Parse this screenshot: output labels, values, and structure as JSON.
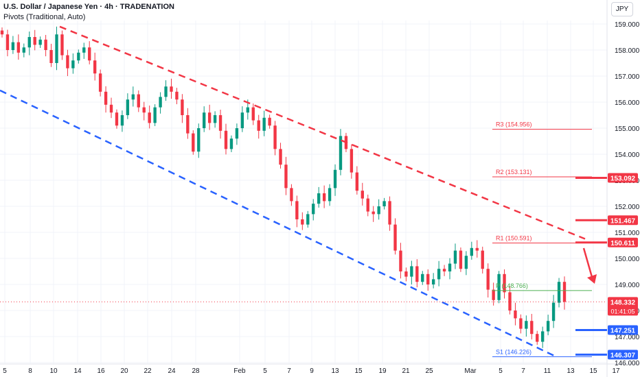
{
  "header": {
    "title": "U.S. Dollar / Japanese Yen · 4h · TRADENATION",
    "indicator": "Pivots (Traditional, Auto)",
    "currency": "JPY"
  },
  "chart_data": {
    "type": "candlestick",
    "ylim": [
      146.0,
      159.2
    ],
    "y_ticks": [
      "159.000",
      "158.000",
      "157.000",
      "156.000",
      "155.000",
      "154.000",
      "153.000",
      "152.000",
      "151.000",
      "150.000",
      "149.000",
      "148.000",
      "147.000",
      "146.000"
    ],
    "x_ticks": [
      "5",
      "8",
      "10",
      "14",
      "16",
      "20",
      "22",
      "24",
      "28",
      "Feb",
      "5",
      "7",
      "9",
      "13",
      "15",
      "19",
      "21",
      "25",
      "Mar",
      "5",
      "7",
      "11",
      "13",
      "15",
      "17"
    ],
    "close_series": [
      158.6,
      158.0,
      158.3,
      157.9,
      158.1,
      158.5,
      158.2,
      158.4,
      158.0,
      157.5,
      158.6,
      157.8,
      157.3,
      157.6,
      157.9,
      158.1,
      157.6,
      157.1,
      156.4,
      155.9,
      155.6,
      155.1,
      155.5,
      156.1,
      156.3,
      155.8,
      155.6,
      155.2,
      155.8,
      156.2,
      156.6,
      156.4,
      156.1,
      155.5,
      154.8,
      154.1,
      155.0,
      155.6,
      155.2,
      155.5,
      154.9,
      154.2,
      154.6,
      155.0,
      155.6,
      155.8,
      155.3,
      154.9,
      155.4,
      155.1,
      154.2,
      153.6,
      152.7,
      152.2,
      151.5,
      151.3,
      151.7,
      152.1,
      152.5,
      152.2,
      152.7,
      153.4,
      154.7,
      154.2,
      153.3,
      152.6,
      152.3,
      151.8,
      151.7,
      152.0,
      152.2,
      151.3,
      150.3,
      149.5,
      149.3,
      149.7,
      149.1,
      149.4,
      149.0,
      149.2,
      149.6,
      149.5,
      149.8,
      150.3,
      149.6,
      150.1,
      150.4,
      150.3,
      149.6,
      148.8,
      148.4,
      149.4,
      148.7,
      148.0,
      147.7,
      147.3,
      147.6,
      147.1,
      146.8,
      147.2,
      147.6,
      148.3,
      149.1,
      148.332
    ],
    "current_price": {
      "value": "148.332",
      "countdown": "01:41:05"
    },
    "trend_lines": {
      "upper": {
        "style": "dashed",
        "color": "#f23645",
        "from": {
          "x": "Jan 11",
          "y": 158.9
        },
        "to": {
          "x": "Mar 13",
          "y": 150.8
        }
      },
      "lower": {
        "style": "dashed",
        "color": "#2962ff",
        "from": {
          "x": "Jan 5",
          "y": 156.4
        },
        "to": {
          "x": "Mar 12",
          "y": 146.2
        }
      }
    },
    "pivots": [
      {
        "label": "R3",
        "value_text": "(154.956)",
        "value": 154.956,
        "color": "#f23645"
      },
      {
        "label": "R2",
        "value_text": "(153.131)",
        "value": 153.131,
        "color": "#f23645"
      },
      {
        "label": "R1",
        "value_text": "(150.591)",
        "value": 150.591,
        "color": "#f23645"
      },
      {
        "label": "P",
        "value_text": "(148.766)",
        "value": 148.766,
        "color": "#4caf50"
      },
      {
        "label": "S1",
        "value_text": "(146.226)",
        "value": 146.226,
        "color": "#2962ff"
      }
    ],
    "level_tags": [
      {
        "text": "153.092",
        "value": 153.092,
        "color": "#f23645"
      },
      {
        "text": "151.467",
        "value": 151.467,
        "color": "#f23645"
      },
      {
        "text": "150.611",
        "value": 150.611,
        "color": "#f23645"
      },
      {
        "text": "147.251",
        "value": 147.251,
        "color": "#2962ff"
      },
      {
        "text": "146.307",
        "value": 146.307,
        "color": "#2962ff"
      }
    ],
    "arrow": {
      "color": "#f23645",
      "direction": "down"
    },
    "colors": {
      "up": "#089981",
      "down": "#f23645",
      "grid": "#f0f3fa",
      "text": "#131722",
      "axis_text": "#131722"
    }
  }
}
